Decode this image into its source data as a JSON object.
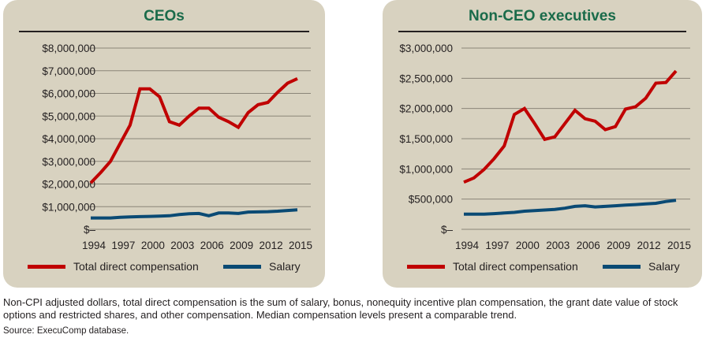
{
  "footnote": "Non-CPI adjusted dollars, total direct compensation is the sum of salary, bonus, nonequity incentive plan compensation, the grant date value of stock options and restricted shares, and other compensation. Median compensation levels present a comparable trend.",
  "source": "Source: ExecuComp database.",
  "colors": {
    "panel_bg": "#d8d2c0",
    "title": "#1a6b4a",
    "total_direct_compensation": "#c00000",
    "salary": "#0a4a74",
    "grid": "#8a8578"
  },
  "chart_data": [
    {
      "type": "line",
      "title": "CEOs",
      "xlabel": "",
      "ylabel": "",
      "x": [
        1994,
        1995,
        1996,
        1997,
        1998,
        1999,
        2000,
        2001,
        2002,
        2003,
        2004,
        2005,
        2006,
        2007,
        2008,
        2009,
        2010,
        2011,
        2012,
        2013,
        2014,
        2015
      ],
      "x_tick_labels": [
        "1994",
        "1997",
        "2000",
        "2003",
        "2006",
        "2009",
        "2012",
        "2015"
      ],
      "y_tick_values": [
        0,
        1000000,
        2000000,
        3000000,
        4000000,
        5000000,
        6000000,
        7000000,
        8000000
      ],
      "y_tick_labels": [
        "$–",
        "$1,000,000",
        "$2,000,000",
        "$3,000,000",
        "$4,000,000",
        "$5,000,000",
        "$6,000,000",
        "$7,000,000",
        "$8,000,000"
      ],
      "ylim": [
        0,
        8000000
      ],
      "grid": true,
      "legend_position": "bottom",
      "series": [
        {
          "name": "Total direct compensation",
          "color": "#c00000",
          "values": [
            2050000,
            2500000,
            3000000,
            3800000,
            4600000,
            6200000,
            6200000,
            5850000,
            4750000,
            4600000,
            5000000,
            5350000,
            5350000,
            4950000,
            4750000,
            4500000,
            5150000,
            5500000,
            5600000,
            6050000,
            6450000,
            6650000
          ]
        },
        {
          "name": "Salary",
          "color": "#0a4a74",
          "values": [
            500000,
            500000,
            500000,
            530000,
            550000,
            560000,
            570000,
            580000,
            600000,
            650000,
            690000,
            700000,
            600000,
            720000,
            720000,
            700000,
            760000,
            770000,
            780000,
            800000,
            830000,
            860000
          ]
        }
      ]
    },
    {
      "type": "line",
      "title": "Non-CEO executives",
      "xlabel": "",
      "ylabel": "",
      "x": [
        1994,
        1995,
        1996,
        1997,
        1998,
        1999,
        2000,
        2001,
        2002,
        2003,
        2004,
        2005,
        2006,
        2007,
        2008,
        2009,
        2010,
        2011,
        2012,
        2013,
        2014,
        2015
      ],
      "x_tick_labels": [
        "1994",
        "1997",
        "2000",
        "2003",
        "2006",
        "2009",
        "2012",
        "2015"
      ],
      "y_tick_values": [
        0,
        500000,
        1000000,
        1500000,
        2000000,
        2500000,
        3000000
      ],
      "y_tick_labels": [
        "$–",
        "$500,000",
        "$1,000,000",
        "$1,500,000",
        "$2,000,000",
        "$2,500,000",
        "$3,000,000"
      ],
      "ylim": [
        0,
        3000000
      ],
      "grid": true,
      "legend_position": "bottom",
      "series": [
        {
          "name": "Total direct compensation",
          "color": "#c00000",
          "values": [
            780000,
            850000,
            990000,
            1170000,
            1380000,
            1900000,
            2000000,
            1750000,
            1490000,
            1530000,
            1750000,
            1970000,
            1830000,
            1790000,
            1650000,
            1700000,
            1990000,
            2030000,
            2170000,
            2420000,
            2430000,
            2620000
          ]
        },
        {
          "name": "Salary",
          "color": "#0a4a74",
          "values": [
            250000,
            250000,
            250000,
            260000,
            270000,
            280000,
            300000,
            310000,
            320000,
            330000,
            350000,
            380000,
            390000,
            370000,
            380000,
            390000,
            400000,
            410000,
            420000,
            430000,
            460000,
            480000
          ]
        }
      ]
    }
  ]
}
